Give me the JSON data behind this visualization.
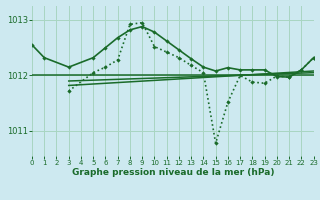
{
  "background_color": "#cde9f0",
  "grid_color": "#a8d5c2",
  "line_color": "#1a6b2a",
  "title": "Graphe pression niveau de la mer (hPa)",
  "xlim": [
    0,
    23
  ],
  "ylim": [
    1010.55,
    1013.25
  ],
  "yticks": [
    1011,
    1012,
    1013
  ],
  "xticks": [
    0,
    1,
    2,
    3,
    4,
    5,
    6,
    7,
    8,
    9,
    10,
    11,
    12,
    13,
    14,
    15,
    16,
    17,
    18,
    19,
    20,
    21,
    22,
    23
  ],
  "line1_x": [
    0,
    23
  ],
  "line1_y": [
    1012.0,
    1012.0
  ],
  "line2_x": [
    3,
    23
  ],
  "line2_y": [
    1011.9,
    1012.05
  ],
  "line3_x": [
    3,
    23
  ],
  "line3_y": [
    1011.82,
    1012.08
  ],
  "curve1_x": [
    0,
    1,
    3,
    5,
    6,
    7,
    8,
    9,
    10,
    11,
    12,
    13,
    14,
    15,
    16,
    17,
    18,
    19,
    20,
    21,
    22,
    23
  ],
  "curve1_y": [
    1012.55,
    1012.32,
    1012.15,
    1012.32,
    1012.5,
    1012.68,
    1012.82,
    1012.88,
    1012.78,
    1012.62,
    1012.46,
    1012.3,
    1012.15,
    1012.08,
    1012.14,
    1012.1,
    1012.1,
    1012.1,
    1011.98,
    1011.97,
    1012.1,
    1012.32
  ],
  "curve2_x": [
    3,
    5,
    6,
    7,
    8,
    9,
    10,
    11,
    12,
    13,
    14,
    15,
    16,
    17,
    18,
    19,
    20,
    21,
    22,
    23
  ],
  "curve2_y": [
    1011.72,
    1012.05,
    1012.15,
    1012.28,
    1012.92,
    1012.95,
    1012.52,
    1012.42,
    1012.32,
    1012.18,
    1012.05,
    1010.78,
    1011.52,
    1012.0,
    1011.88,
    1011.86,
    1011.99,
    1011.97,
    1012.1,
    1012.32
  ]
}
